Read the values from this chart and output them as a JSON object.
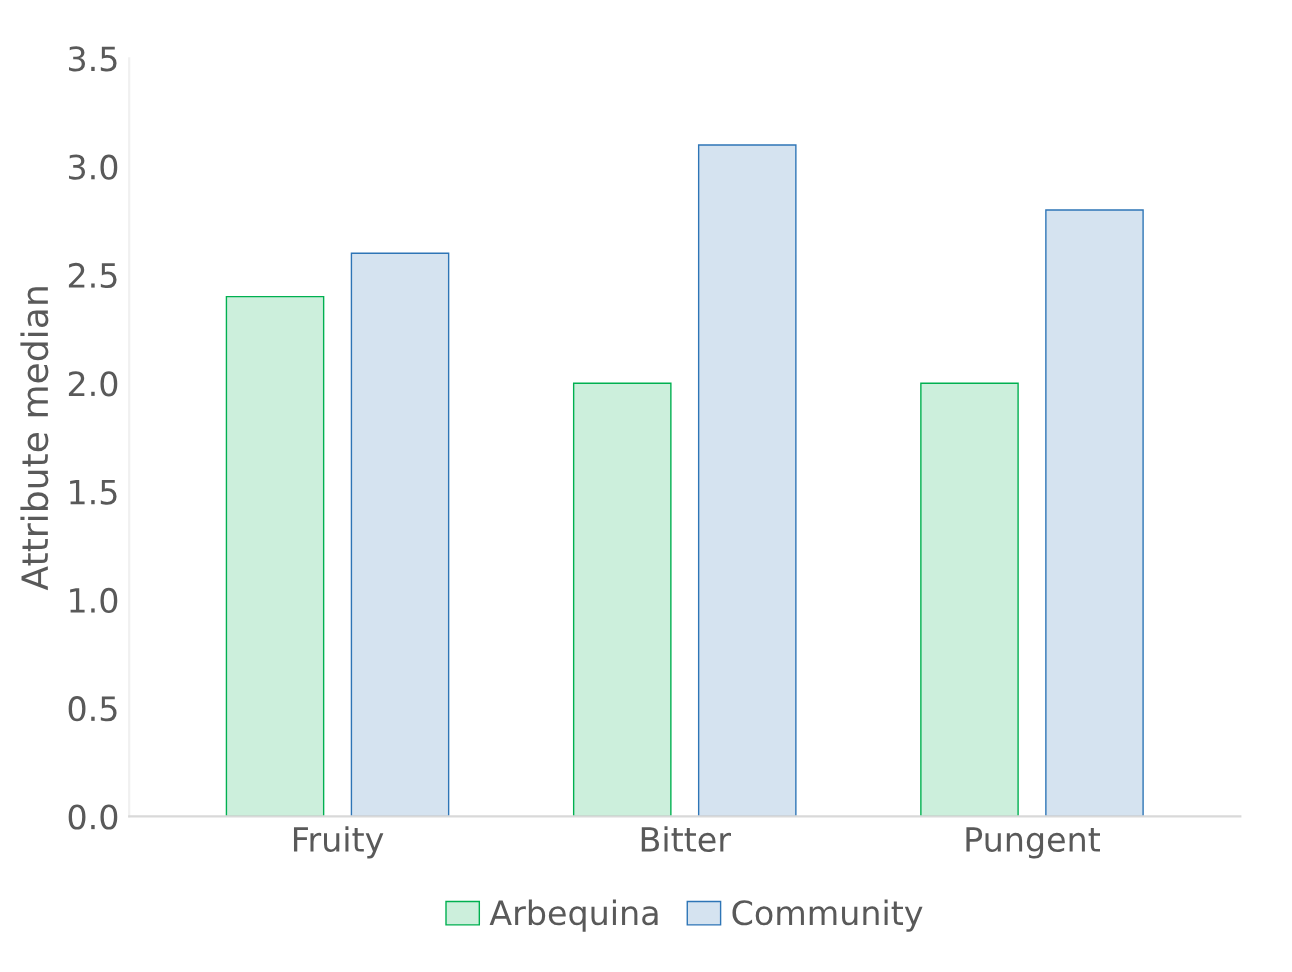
{
  "chart_data": {
    "type": "bar",
    "ylabel": "Attribute median",
    "categories": [
      "Fruity",
      "Bitter",
      "Pungent"
    ],
    "series": [
      {
        "name": "Arbequina",
        "color": "#00b050",
        "values": [
          2.4,
          2.0,
          2.0
        ]
      },
      {
        "name": "Community",
        "color": "#2e75b6",
        "values": [
          2.6,
          3.1,
          2.8
        ]
      }
    ],
    "ylim": [
      0,
      3.5
    ],
    "yticks": [
      {
        "value": 0,
        "label": "0.0"
      },
      {
        "value": 0.5,
        "label": "0.5"
      },
      {
        "value": 1,
        "label": "1.0"
      },
      {
        "value": 1.5,
        "label": "1.5"
      },
      {
        "value": 2,
        "label": "2.0"
      },
      {
        "value": 2.5,
        "label": "2.5"
      },
      {
        "value": 3,
        "label": "3.0"
      },
      {
        "value": 3.5,
        "label": "3.5"
      }
    ],
    "grid": false,
    "legend": "bottom"
  }
}
